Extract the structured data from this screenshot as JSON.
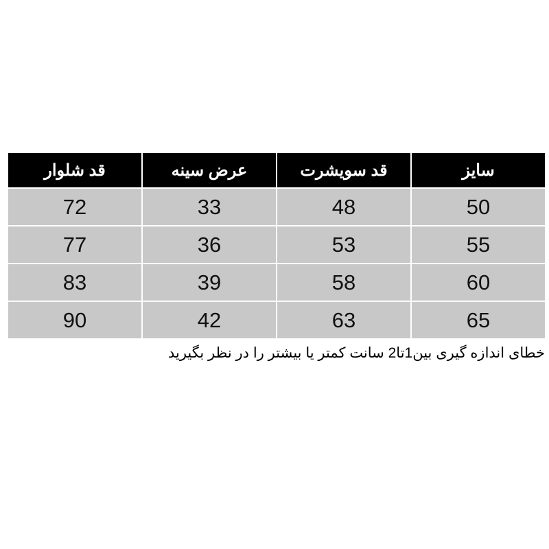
{
  "table": {
    "headers": [
      "سایز",
      "قد سویشرت",
      "عرض سینه",
      "قد شلوار"
    ],
    "rows": [
      [
        "50",
        "48",
        "33",
        "72"
      ],
      [
        "55",
        "53",
        "36",
        "77"
      ],
      [
        "60",
        "58",
        "39",
        "83"
      ],
      [
        "65",
        "63",
        "42",
        "90"
      ]
    ],
    "colors": {
      "header_bg": "#000000",
      "header_text": "#ffffff",
      "cell_bg": "#c8c8c8"
    }
  },
  "note": "خطای اندازه گیری بین1تا2 سانت کمتر یا بیشتر را در نظر بگیرید"
}
